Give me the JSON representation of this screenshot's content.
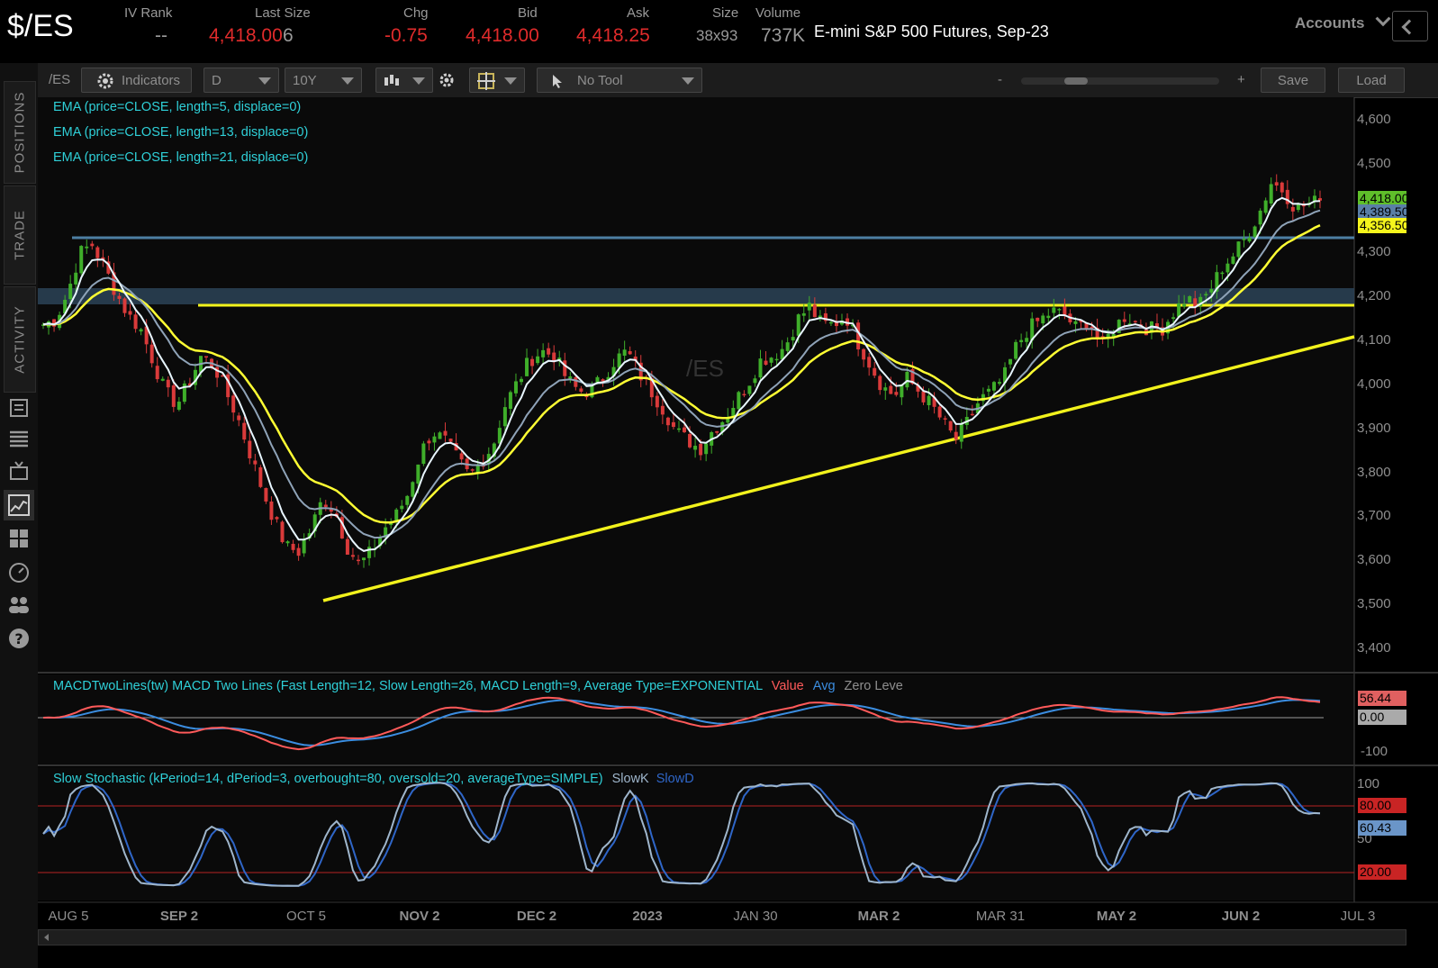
{
  "header": {
    "symbol": "$/ES",
    "iv_rank_label": "IV Rank",
    "iv_rank_value": "--",
    "last_size_label": "Last Size",
    "last_price": "4,418.00",
    "last_size": "6",
    "chg_label": "Chg",
    "chg_value": "-0.75",
    "bid_label": "Bid",
    "bid_value": "4,418.00",
    "ask_label": "Ask",
    "ask_value": "4,418.25",
    "size_label": "Size",
    "size_value": "38x93",
    "volume_label": "Volume",
    "volume_value": "737K",
    "description": "E-mini S&P 500 Futures, Sep-23",
    "accounts_label": "Accounts"
  },
  "sidebar": {
    "tabs": [
      "POSITIONS",
      "TRADE",
      "ACTIVITY"
    ]
  },
  "toolbar": {
    "symbol": "/ES",
    "indicators_label": "Indicators",
    "aggregation": "D",
    "timeframe": "10Y",
    "tool_label": "No Tool",
    "zoom_minus": "-",
    "zoom_plus": "+",
    "save_label": "Save",
    "load_label": "Load"
  },
  "studies": {
    "ema5": "EMA (price=CLOSE, length=5, displace=0)",
    "ema13": "EMA (price=CLOSE, length=13, displace=0)",
    "ema21": "EMA (price=CLOSE, length=21, displace=0)",
    "macd_title": "MACDTwoLines(tw) MACD Two Lines (Fast Length=12, Slow Length=26, MACD Length=9, Average Type=EXPONENTIAL",
    "macd_value": "Value",
    "macd_avg": "Avg",
    "macd_zero": "Zero Leve",
    "stoch_title": "Slow Stochastic (kPeriod=14, dPeriod=3, overbought=80, oversold=20, averageType=SIMPLE)",
    "stoch_k": "SlowK",
    "stoch_d": "SlowD"
  },
  "watermark": "/ES",
  "price_axis": [
    "4,600",
    "4,500",
    "4,300",
    "4,200",
    "4,100",
    "4,000",
    "3,900",
    "3,800",
    "3,700",
    "3,600",
    "3,500",
    "3,400"
  ],
  "price_tags": {
    "last": "4,418.00",
    "ema13": "4,389.50",
    "ema21": "4,356.50"
  },
  "macd_axis": {
    "value_tag": "56.44",
    "zero_tag": "0.00",
    "low": "-100"
  },
  "stoch_axis": {
    "top": "100",
    "overbought_tag": "80.00",
    "value_tag": "60.43",
    "mid": "50",
    "oversold_tag": "20.00"
  },
  "x_axis": [
    "AUG 5",
    "SEP 2",
    "OCT 5",
    "NOV 2",
    "DEC 2",
    "2023",
    "JAN 30",
    "MAR 2",
    "MAR 31",
    "MAY 2",
    "JUN 2",
    "JUL 3"
  ],
  "colors": {
    "up_candle": "#3fae2a",
    "down_candle": "#d93a3a",
    "ema5": "#e8f6ff",
    "ema13": "#8fa3b8",
    "ema21": "#ffff33",
    "macd_value": "#ff5a5a",
    "macd_avg": "#3b8de0",
    "slowk": "#9fb6cc",
    "slowd": "#2f66c8",
    "support_line": "#f2f21c",
    "resistance_line": "#4d7fa3"
  },
  "chart_data": {
    "type": "candlestick",
    "y_range": [
      3360,
      4650
    ],
    "annotations": [
      {
        "kind": "horizontal",
        "price": 4330,
        "color": "resistance"
      },
      {
        "kind": "zone",
        "from": 4180,
        "to": 4215
      },
      {
        "kind": "horizontal",
        "price": 4178,
        "color": "support"
      },
      {
        "kind": "trendline",
        "from_price": 3510,
        "to_price": 4108
      }
    ],
    "close_path": [
      4140,
      4150,
      4210,
      4300,
      4320,
      4270,
      4210,
      4160,
      4130,
      4060,
      3990,
      3960,
      4010,
      4070,
      4050,
      3990,
      3930,
      3850,
      3770,
      3700,
      3640,
      3630,
      3680,
      3750,
      3720,
      3640,
      3600,
      3630,
      3680,
      3710,
      3760,
      3850,
      3900,
      3880,
      3840,
      3800,
      3830,
      3870,
      3960,
      4010,
      4060,
      4080,
      4070,
      4020,
      3990,
      3990,
      4020,
      4060,
      4080,
      4030,
      3990,
      3950,
      3900,
      3880,
      3860,
      3900,
      3930,
      3970,
      4010,
      4060,
      4070,
      4090,
      4150,
      4180,
      4140,
      4140,
      4160,
      4100,
      4050,
      4000,
      3980,
      4020,
      3990,
      3960,
      3920,
      3880,
      3920,
      3970,
      3990,
      4020,
      4090,
      4130,
      4150,
      4170,
      4160,
      4130,
      4150,
      4090,
      4130,
      4160,
      4140,
      4130,
      4130,
      4170,
      4200,
      4180,
      4220,
      4270,
      4300,
      4340,
      4390,
      4460,
      4440,
      4400,
      4410,
      4418
    ]
  }
}
